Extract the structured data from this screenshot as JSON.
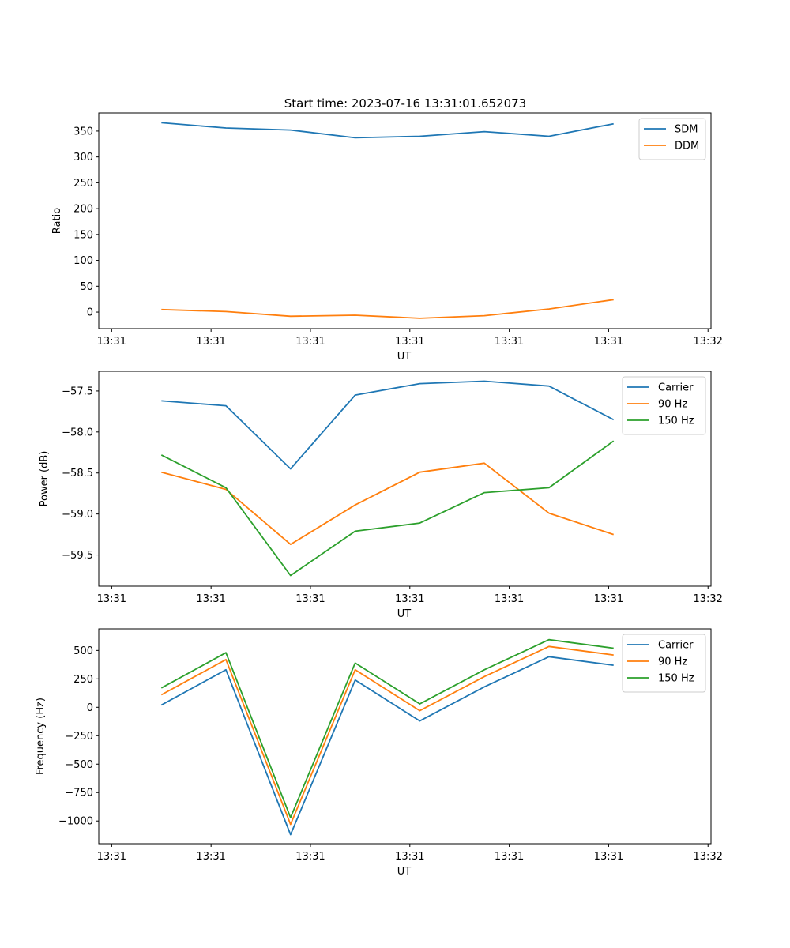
{
  "figure": {
    "title": "Start time: 2023-07-16 13:31:01.652073"
  },
  "chart_data": [
    {
      "type": "line",
      "title": "Start time: 2023-07-16 13:31:01.652073",
      "xlabel": "UT",
      "ylabel": "Ratio",
      "x_tick_labels": [
        "13:31",
        "13:31",
        "13:31",
        "13:31",
        "13:31",
        "13:31",
        "13:32"
      ],
      "xlim": [
        -0.13,
        6.03
      ],
      "x": [
        0.5,
        1.15,
        1.8,
        2.45,
        3.1,
        3.75,
        4.4,
        5.05
      ],
      "ylim": [
        -32,
        385
      ],
      "yticks": [
        0,
        50,
        100,
        150,
        200,
        250,
        300,
        350
      ],
      "legend_position": "top-right",
      "series": [
        {
          "name": "SDM",
          "color": "#1f77b4",
          "values": [
            366,
            356,
            352,
            337,
            340,
            349,
            340,
            364
          ]
        },
        {
          "name": "DDM",
          "color": "#ff7f0e",
          "values": [
            5,
            1,
            -8,
            -6,
            -12,
            -7,
            6,
            24
          ]
        }
      ]
    },
    {
      "type": "line",
      "xlabel": "UT",
      "ylabel": "Power (dB)",
      "x_tick_labels": [
        "13:31",
        "13:31",
        "13:31",
        "13:31",
        "13:31",
        "13:31",
        "13:32"
      ],
      "xlim": [
        -0.13,
        6.03
      ],
      "x": [
        0.5,
        1.15,
        1.8,
        2.45,
        3.1,
        3.75,
        4.4,
        5.05
      ],
      "ylim": [
        -59.88,
        -57.26
      ],
      "yticks": [
        -59.5,
        -59.0,
        -58.5,
        -58.0,
        -57.5
      ],
      "ytick_labels": [
        "−59.5",
        "−59.0",
        "−58.5",
        "−58.0",
        "−57.5"
      ],
      "legend_position": "top-right",
      "series": [
        {
          "name": "Carrier",
          "color": "#1f77b4",
          "values": [
            -57.62,
            -57.68,
            -58.45,
            -57.55,
            -57.41,
            -57.38,
            -57.44,
            -57.85
          ]
        },
        {
          "name": "90 Hz",
          "color": "#ff7f0e",
          "values": [
            -58.49,
            -58.7,
            -59.37,
            -58.89,
            -58.49,
            -58.38,
            -58.99,
            -59.25
          ]
        },
        {
          "name": "150 Hz",
          "color": "#2ca02c",
          "values": [
            -58.28,
            -58.68,
            -59.75,
            -59.21,
            -59.11,
            -58.74,
            -58.68,
            -58.11
          ]
        }
      ]
    },
    {
      "type": "line",
      "xlabel": "UT",
      "ylabel": "Frequency (Hz)",
      "x_tick_labels": [
        "13:31",
        "13:31",
        "13:31",
        "13:31",
        "13:31",
        "13:31",
        "13:32"
      ],
      "xlim": [
        -0.13,
        6.03
      ],
      "x": [
        0.5,
        1.15,
        1.8,
        2.45,
        3.1,
        3.75,
        4.4,
        5.05
      ],
      "ylim": [
        -1200,
        690
      ],
      "yticks": [
        -1000,
        -750,
        -500,
        -250,
        0,
        250,
        500
      ],
      "ytick_labels": [
        "−1000",
        "−750",
        "−500",
        "−250",
        "0",
        "250",
        "500"
      ],
      "legend_position": "top-right",
      "series": [
        {
          "name": "Carrier",
          "color": "#1f77b4",
          "values": [
            20,
            330,
            -1120,
            240,
            -120,
            180,
            445,
            370
          ]
        },
        {
          "name": "90 Hz",
          "color": "#ff7f0e",
          "values": [
            110,
            420,
            -1030,
            330,
            -30,
            270,
            535,
            460
          ]
        },
        {
          "name": "150 Hz",
          "color": "#2ca02c",
          "values": [
            170,
            480,
            -970,
            390,
            30,
            330,
            595,
            520
          ]
        }
      ]
    }
  ]
}
